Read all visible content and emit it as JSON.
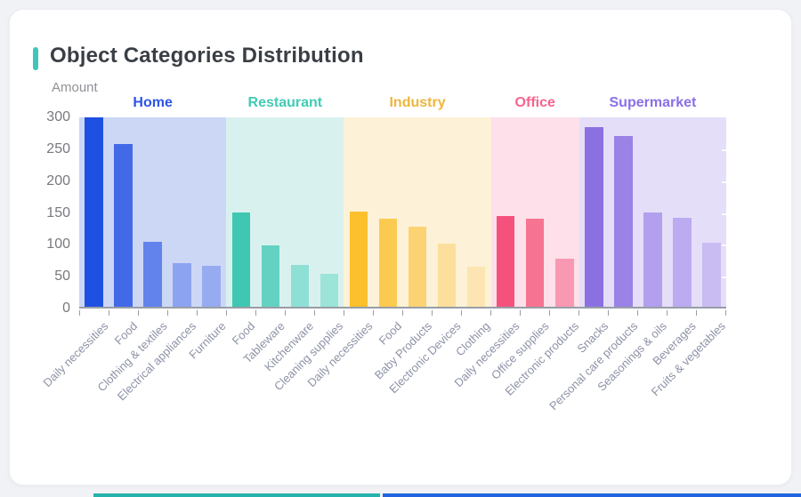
{
  "window": {
    "background": "#f1f2f5",
    "card_background": "#ffffff"
  },
  "header": {
    "title": "Object Categories Distribution",
    "accent_color": "#3ec6ba"
  },
  "chart_data": {
    "type": "bar",
    "title": "Object Categories Distribution",
    "ylabel": "Amount",
    "xlabel": "",
    "ylim": [
      0,
      300
    ],
    "yticks": [
      0,
      50,
      100,
      150,
      200,
      250,
      300
    ],
    "grid": false,
    "legend_position": "top-inside-bands",
    "axis_color": "#979ea7",
    "ytick_label_color": "#77797e",
    "xtick_label_color": "#8d92a6",
    "groups": [
      {
        "name": "Home",
        "label_color": "#2d54e8",
        "band_color": "#ccd7f5",
        "bars": [
          {
            "category": "Daily necessities",
            "value": 300,
            "color": "#1e50e2"
          },
          {
            "category": "Food",
            "value": 258,
            "color": "#4169e8"
          },
          {
            "category": "Clothing & textiles",
            "value": 103,
            "color": "#6283eb"
          },
          {
            "category": "Electrical appliances",
            "value": 69,
            "color": "#8ba3f0"
          },
          {
            "category": "Furniture",
            "value": 65,
            "color": "#97abf1"
          }
        ]
      },
      {
        "name": "Restaurant",
        "label_color": "#41cbb5",
        "band_color": "#d9f1ee",
        "bars": [
          {
            "category": "Food",
            "value": 149,
            "color": "#3fc7b2"
          },
          {
            "category": "Tableware",
            "value": 97,
            "color": "#63d2c2"
          },
          {
            "category": "Kitchenware",
            "value": 66,
            "color": "#8fe0d4"
          },
          {
            "category": "Cleaning supplies",
            "value": 52,
            "color": "#9ce4d8"
          }
        ]
      },
      {
        "name": "Industry",
        "label_color": "#eeb63d",
        "band_color": "#fdf2d7",
        "bars": [
          {
            "category": "Daily necessities",
            "value": 151,
            "color": "#fbc02c"
          },
          {
            "category": "Food",
            "value": 139,
            "color": "#fbca50"
          },
          {
            "category": "Baby Products",
            "value": 127,
            "color": "#fbd373"
          },
          {
            "category": "Electronic Devices",
            "value": 100,
            "color": "#fcdf9d"
          },
          {
            "category": "Clothing",
            "value": 64,
            "color": "#fce5b2"
          }
        ]
      },
      {
        "name": "Office",
        "label_color": "#f8628d",
        "band_color": "#fde0ea",
        "bars": [
          {
            "category": "Daily necessities",
            "value": 143,
            "color": "#f4517d"
          },
          {
            "category": "Office supplies",
            "value": 140,
            "color": "#f67391"
          },
          {
            "category": "Electronic products",
            "value": 76,
            "color": "#f998b2"
          }
        ]
      },
      {
        "name": "Supermarket",
        "label_color": "#8a6fe8",
        "band_color": "#e5def8",
        "bars": [
          {
            "category": "Snacks",
            "value": 285,
            "color": "#8b70e2"
          },
          {
            "category": "Personal care products",
            "value": 271,
            "color": "#9a82e6"
          },
          {
            "category": "Seasonings & oils",
            "value": 150,
            "color": "#b29fed"
          },
          {
            "category": "Beverages",
            "value": 141,
            "color": "#bcabf0"
          },
          {
            "category": "Fruits & vegetables",
            "value": 102,
            "color": "#c9bcf3"
          }
        ]
      }
    ]
  },
  "footer_strip": {
    "teal_color": "#25b2ad",
    "blue_color": "#2065df"
  }
}
